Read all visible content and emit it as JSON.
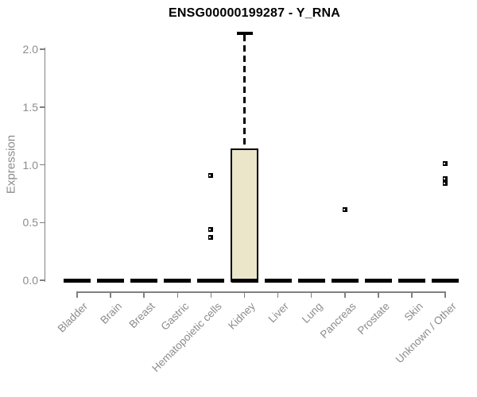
{
  "chart_data": {
    "type": "boxplot",
    "title": "ENSG00000199287 - Y_RNA",
    "ylabel": "Expression",
    "xlabel": "",
    "ylim": [
      0,
      2.2
    ],
    "ytick_labels": [
      "0.0",
      "0.5",
      "1.0",
      "1.5",
      "2.0"
    ],
    "ytick_values": [
      0,
      0.5,
      1.0,
      1.5,
      2.0
    ],
    "grid": false,
    "legend": null,
    "categories": [
      "Bladder",
      "Brain",
      "Breast",
      "Gastric",
      "Hematopoietic cells",
      "Kidney",
      "Liver",
      "Lung",
      "Pancreas",
      "Prostate",
      "Skin",
      "Unknown / Other"
    ],
    "boxes": [
      {
        "category": "Bladder",
        "q1": 0,
        "median": 0,
        "q3": 0,
        "whisker_low": 0,
        "whisker_high": 0,
        "outliers": []
      },
      {
        "category": "Brain",
        "q1": 0,
        "median": 0,
        "q3": 0,
        "whisker_low": 0,
        "whisker_high": 0,
        "outliers": []
      },
      {
        "category": "Breast",
        "q1": 0,
        "median": 0,
        "q3": 0,
        "whisker_low": 0,
        "whisker_high": 0,
        "outliers": []
      },
      {
        "category": "Gastric",
        "q1": 0,
        "median": 0,
        "q3": 0,
        "whisker_low": 0,
        "whisker_high": 0,
        "outliers": []
      },
      {
        "category": "Hematopoietic cells",
        "q1": 0,
        "median": 0,
        "q3": 0,
        "whisker_low": 0,
        "whisker_high": 0,
        "outliers": [
          0.91,
          0.44,
          0.37
        ]
      },
      {
        "category": "Kidney",
        "q1": 0,
        "median": 0,
        "q3": 1.14,
        "whisker_low": 0,
        "whisker_high": 2.14,
        "outliers": []
      },
      {
        "category": "Liver",
        "q1": 0,
        "median": 0,
        "q3": 0,
        "whisker_low": 0,
        "whisker_high": 0,
        "outliers": []
      },
      {
        "category": "Lung",
        "q1": 0,
        "median": 0,
        "q3": 0,
        "whisker_low": 0,
        "whisker_high": 0,
        "outliers": []
      },
      {
        "category": "Pancreas",
        "q1": 0,
        "median": 0,
        "q3": 0,
        "whisker_low": 0,
        "whisker_high": 0,
        "outliers": [
          0.61
        ]
      },
      {
        "category": "Prostate",
        "q1": 0,
        "median": 0,
        "q3": 0,
        "whisker_low": 0,
        "whisker_high": 0,
        "outliers": []
      },
      {
        "category": "Skin",
        "q1": 0,
        "median": 0,
        "q3": 0,
        "whisker_low": 0,
        "whisker_high": 0,
        "outliers": []
      },
      {
        "category": "Unknown / Other",
        "q1": 0,
        "median": 0,
        "q3": 0,
        "whisker_low": 0,
        "whisker_high": 0,
        "outliers": [
          1.01,
          0.88,
          0.84
        ]
      }
    ],
    "colors": {
      "box_fill": "#ebe6ca",
      "box_border": "#000000",
      "median": "#000000",
      "whisker": "#000000",
      "outlier": "#000000",
      "axis": "#808080",
      "tick_label": "#8c8c8c",
      "title": "#000000",
      "background": "#ffffff"
    }
  }
}
